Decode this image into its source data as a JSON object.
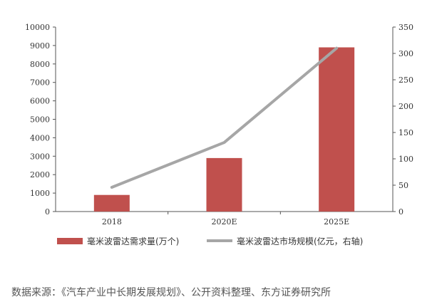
{
  "chart_data": {
    "type": "bar",
    "categories": [
      "2018",
      "2020E",
      "2025E"
    ],
    "series": [
      {
        "name": "毫米波雷达需求量(万个)",
        "type": "bar",
        "axis": "left",
        "values": [
          900,
          2900,
          8900
        ],
        "color": "#c0504d"
      },
      {
        "name": "毫米波雷达市场规模(亿元，右轴)",
        "type": "line",
        "axis": "right",
        "values": [
          46,
          131,
          310
        ],
        "color": "#a6a6a6"
      }
    ],
    "y_left": {
      "min": 0,
      "max": 10000,
      "ticks": [
        "0",
        "1000",
        "2000",
        "3000",
        "4000",
        "5000",
        "6000",
        "7000",
        "8000",
        "9000",
        "10000"
      ]
    },
    "y_right": {
      "min": 0,
      "max": 350,
      "ticks": [
        "0",
        "50",
        "100",
        "150",
        "200",
        "250",
        "300",
        "350"
      ]
    },
    "grid": false,
    "legend_position": "bottom"
  },
  "source_note": "数据来源：《汽车产业中长期发展规划》、公开资料整理、东方证券研究所"
}
